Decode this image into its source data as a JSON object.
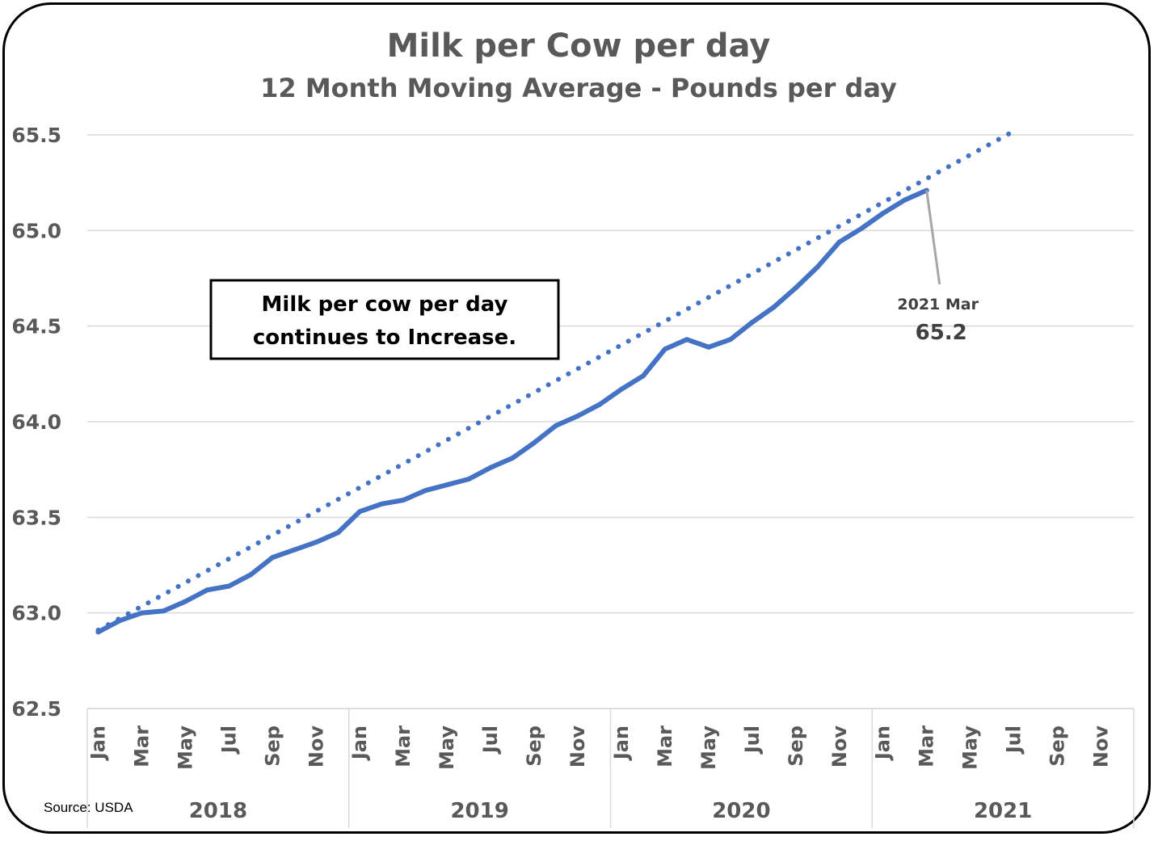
{
  "chart_data": {
    "type": "line",
    "title": "Milk per Cow per day",
    "subtitle": "12 Month Moving Average - Pounds per day",
    "ylim": [
      62.5,
      65.5
    ],
    "yticks": [
      "65.5",
      "65.0",
      "64.5",
      "64.0",
      "63.5",
      "63.0",
      "62.5"
    ],
    "month_labels": [
      "Jan",
      "Mar",
      "May",
      "Jul",
      "Sep",
      "Nov"
    ],
    "years": [
      "2018",
      "2019",
      "2020",
      "2021"
    ],
    "months_per_year": 12,
    "grid": true,
    "series": [
      {
        "style": "solid",
        "color": "#4472C4",
        "values": [
          62.9,
          62.96,
          63.0,
          63.01,
          63.06,
          63.12,
          63.14,
          63.2,
          63.29,
          63.33,
          63.37,
          63.42,
          63.53,
          63.57,
          63.59,
          63.64,
          63.67,
          63.7,
          63.76,
          63.81,
          63.89,
          63.98,
          64.03,
          64.09,
          64.17,
          64.24,
          64.38,
          64.43,
          64.39,
          64.43,
          64.52,
          64.6,
          64.7,
          64.81,
          64.94,
          65.01,
          65.09,
          65.16,
          65.21
        ]
      },
      {
        "style": "dotted",
        "color": "#4472C4",
        "trend": "linear",
        "values": [
          62.91,
          65.52
        ],
        "x_span_months": [
          1,
          43
        ]
      }
    ],
    "annotations": [
      {
        "label": "2021 Mar",
        "value": "65.2",
        "point": {
          "year": "2021",
          "month": "Mar",
          "value": 65.21
        }
      }
    ]
  },
  "callout": {
    "line1": "Milk per cow per day",
    "line2": "continues to Increase."
  },
  "source": "Source: USDA",
  "colors": {
    "series": "#4472C4",
    "text": "#595959",
    "grid": "#D9D9D9",
    "leader": "#A6A6A6"
  }
}
